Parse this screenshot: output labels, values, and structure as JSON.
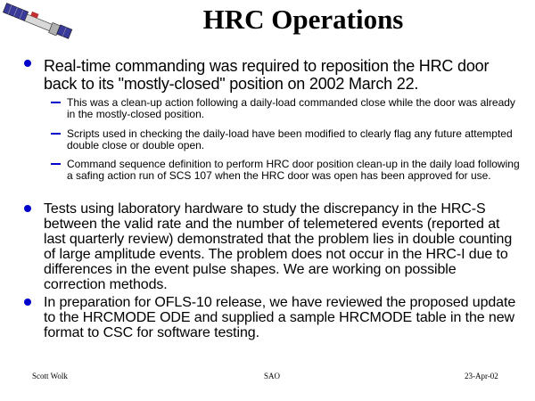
{
  "title": "HRC Operations",
  "logo": {
    "icon": "satellite-icon"
  },
  "bullets": [
    {
      "text": "Real-time commanding was required to reposition the HRC door back to its \"mostly-closed\" position on 2002 March 22.",
      "subs": [
        "This was a clean-up action following a daily-load commanded close while the door was already in the mostly-closed position.",
        "Scripts used in checking the daily-load have been modified to clearly flag any future attempted double close or double open.",
        "Command sequence definition to perform HRC door position clean-up  in the daily load following a safing action run of SCS 107 when the HRC door was open has been approved for use."
      ]
    },
    {
      "text": "Tests using laboratory hardware to study the discrepancy in the HRC-S between the valid rate and the number of telemetered events (reported at last quarterly review) demonstrated that the problem lies in double counting of large amplitude events. The problem does not occur in the HRC-I due to differences in the event pulse shapes. We are working on possible correction methods."
    },
    {
      "text": "In preparation for OFLS-10 release, we have reviewed the proposed update to the HRCMODE ODE and supplied a sample HRCMODE table in the new format to CSC for software testing."
    }
  ],
  "footer": {
    "author": "Scott Wolk",
    "org": "SAO",
    "date": "23-Apr-02"
  },
  "colors": {
    "bullet": "#0000cc"
  }
}
